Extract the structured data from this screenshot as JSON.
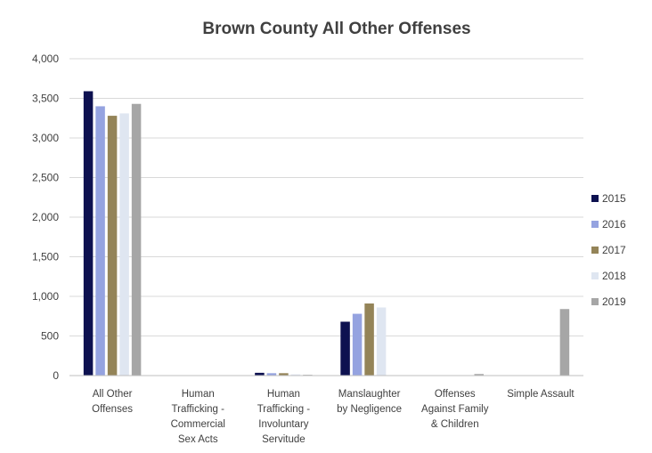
{
  "chart_data": {
    "type": "bar",
    "title": "Brown County All Other Offenses",
    "xlabel": "",
    "ylabel": "",
    "ylim": [
      0,
      4000
    ],
    "yticks": [
      0,
      500,
      1000,
      1500,
      2000,
      2500,
      3000,
      3500,
      4000
    ],
    "ytick_labels": [
      "0",
      "500",
      "1,000",
      "1,500",
      "2,000",
      "2,500",
      "3,000",
      "3,500",
      "4,000"
    ],
    "grid": true,
    "legend_position": "right",
    "categories": [
      [
        "All Other",
        "Offenses"
      ],
      [
        "Human",
        "Trafficking -",
        "Commercial",
        "Sex Acts"
      ],
      [
        "Human",
        "Trafficking -",
        "Involuntary",
        "Servitude"
      ],
      [
        "Manslaughter",
        "by Negligence"
      ],
      [
        "Offenses",
        "Against Family",
        "& Children"
      ],
      [
        "Simple Assault"
      ]
    ],
    "series": [
      {
        "name": "2015",
        "color": "#0d1150",
        "values": [
          3590,
          0,
          35,
          680,
          0,
          0
        ]
      },
      {
        "name": "2016",
        "color": "#95a3e0",
        "values": [
          3400,
          0,
          30,
          780,
          0,
          0
        ]
      },
      {
        "name": "2017",
        "color": "#948458",
        "values": [
          3280,
          0,
          30,
          910,
          0,
          0
        ]
      },
      {
        "name": "2018",
        "color": "#dfe6f1",
        "values": [
          3310,
          0,
          15,
          860,
          0,
          0
        ]
      },
      {
        "name": "2019",
        "color": "#a6a6a6",
        "values": [
          3430,
          0,
          10,
          0,
          20,
          840
        ]
      }
    ]
  }
}
